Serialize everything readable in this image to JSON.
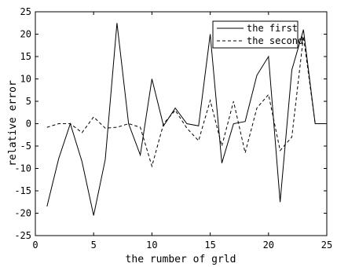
{
  "chart_data": {
    "type": "line",
    "title": "",
    "xlabel": "the rumber of grld",
    "ylabel": "relative error",
    "xlim": [
      0,
      25
    ],
    "ylim": [
      -25,
      25
    ],
    "xticks": [
      0,
      5,
      10,
      15,
      20,
      25
    ],
    "yticks": [
      -25,
      -20,
      -15,
      -10,
      -5,
      0,
      5,
      10,
      15,
      20,
      25
    ],
    "grid": false,
    "legend_position": "top-right",
    "x": [
      1,
      2,
      3,
      4,
      5,
      6,
      7,
      8,
      9,
      10,
      11,
      12,
      13,
      14,
      15,
      16,
      17,
      18,
      19,
      20,
      21,
      22,
      23,
      24,
      25
    ],
    "series": [
      {
        "name": "the first",
        "style": "solid",
        "values": [
          -18.5,
          -7.8,
          0,
          -8.5,
          -20.5,
          -8,
          22.5,
          0,
          -7,
          10,
          -0.5,
          3.5,
          0,
          -0.5,
          20,
          -8.8,
          0,
          0.5,
          10.8,
          15,
          -17.5,
          12,
          21,
          0,
          0
        ]
      },
      {
        "name": "the second",
        "style": "dashed",
        "values": [
          -0.8,
          0,
          0,
          -2,
          1.5,
          -1,
          -0.8,
          0,
          -0.8,
          -9.5,
          0,
          3,
          -1,
          -3.8,
          5.2,
          -5,
          5,
          -6.5,
          3.5,
          6.5,
          -6,
          -3,
          19.5,
          0,
          0
        ]
      }
    ]
  }
}
